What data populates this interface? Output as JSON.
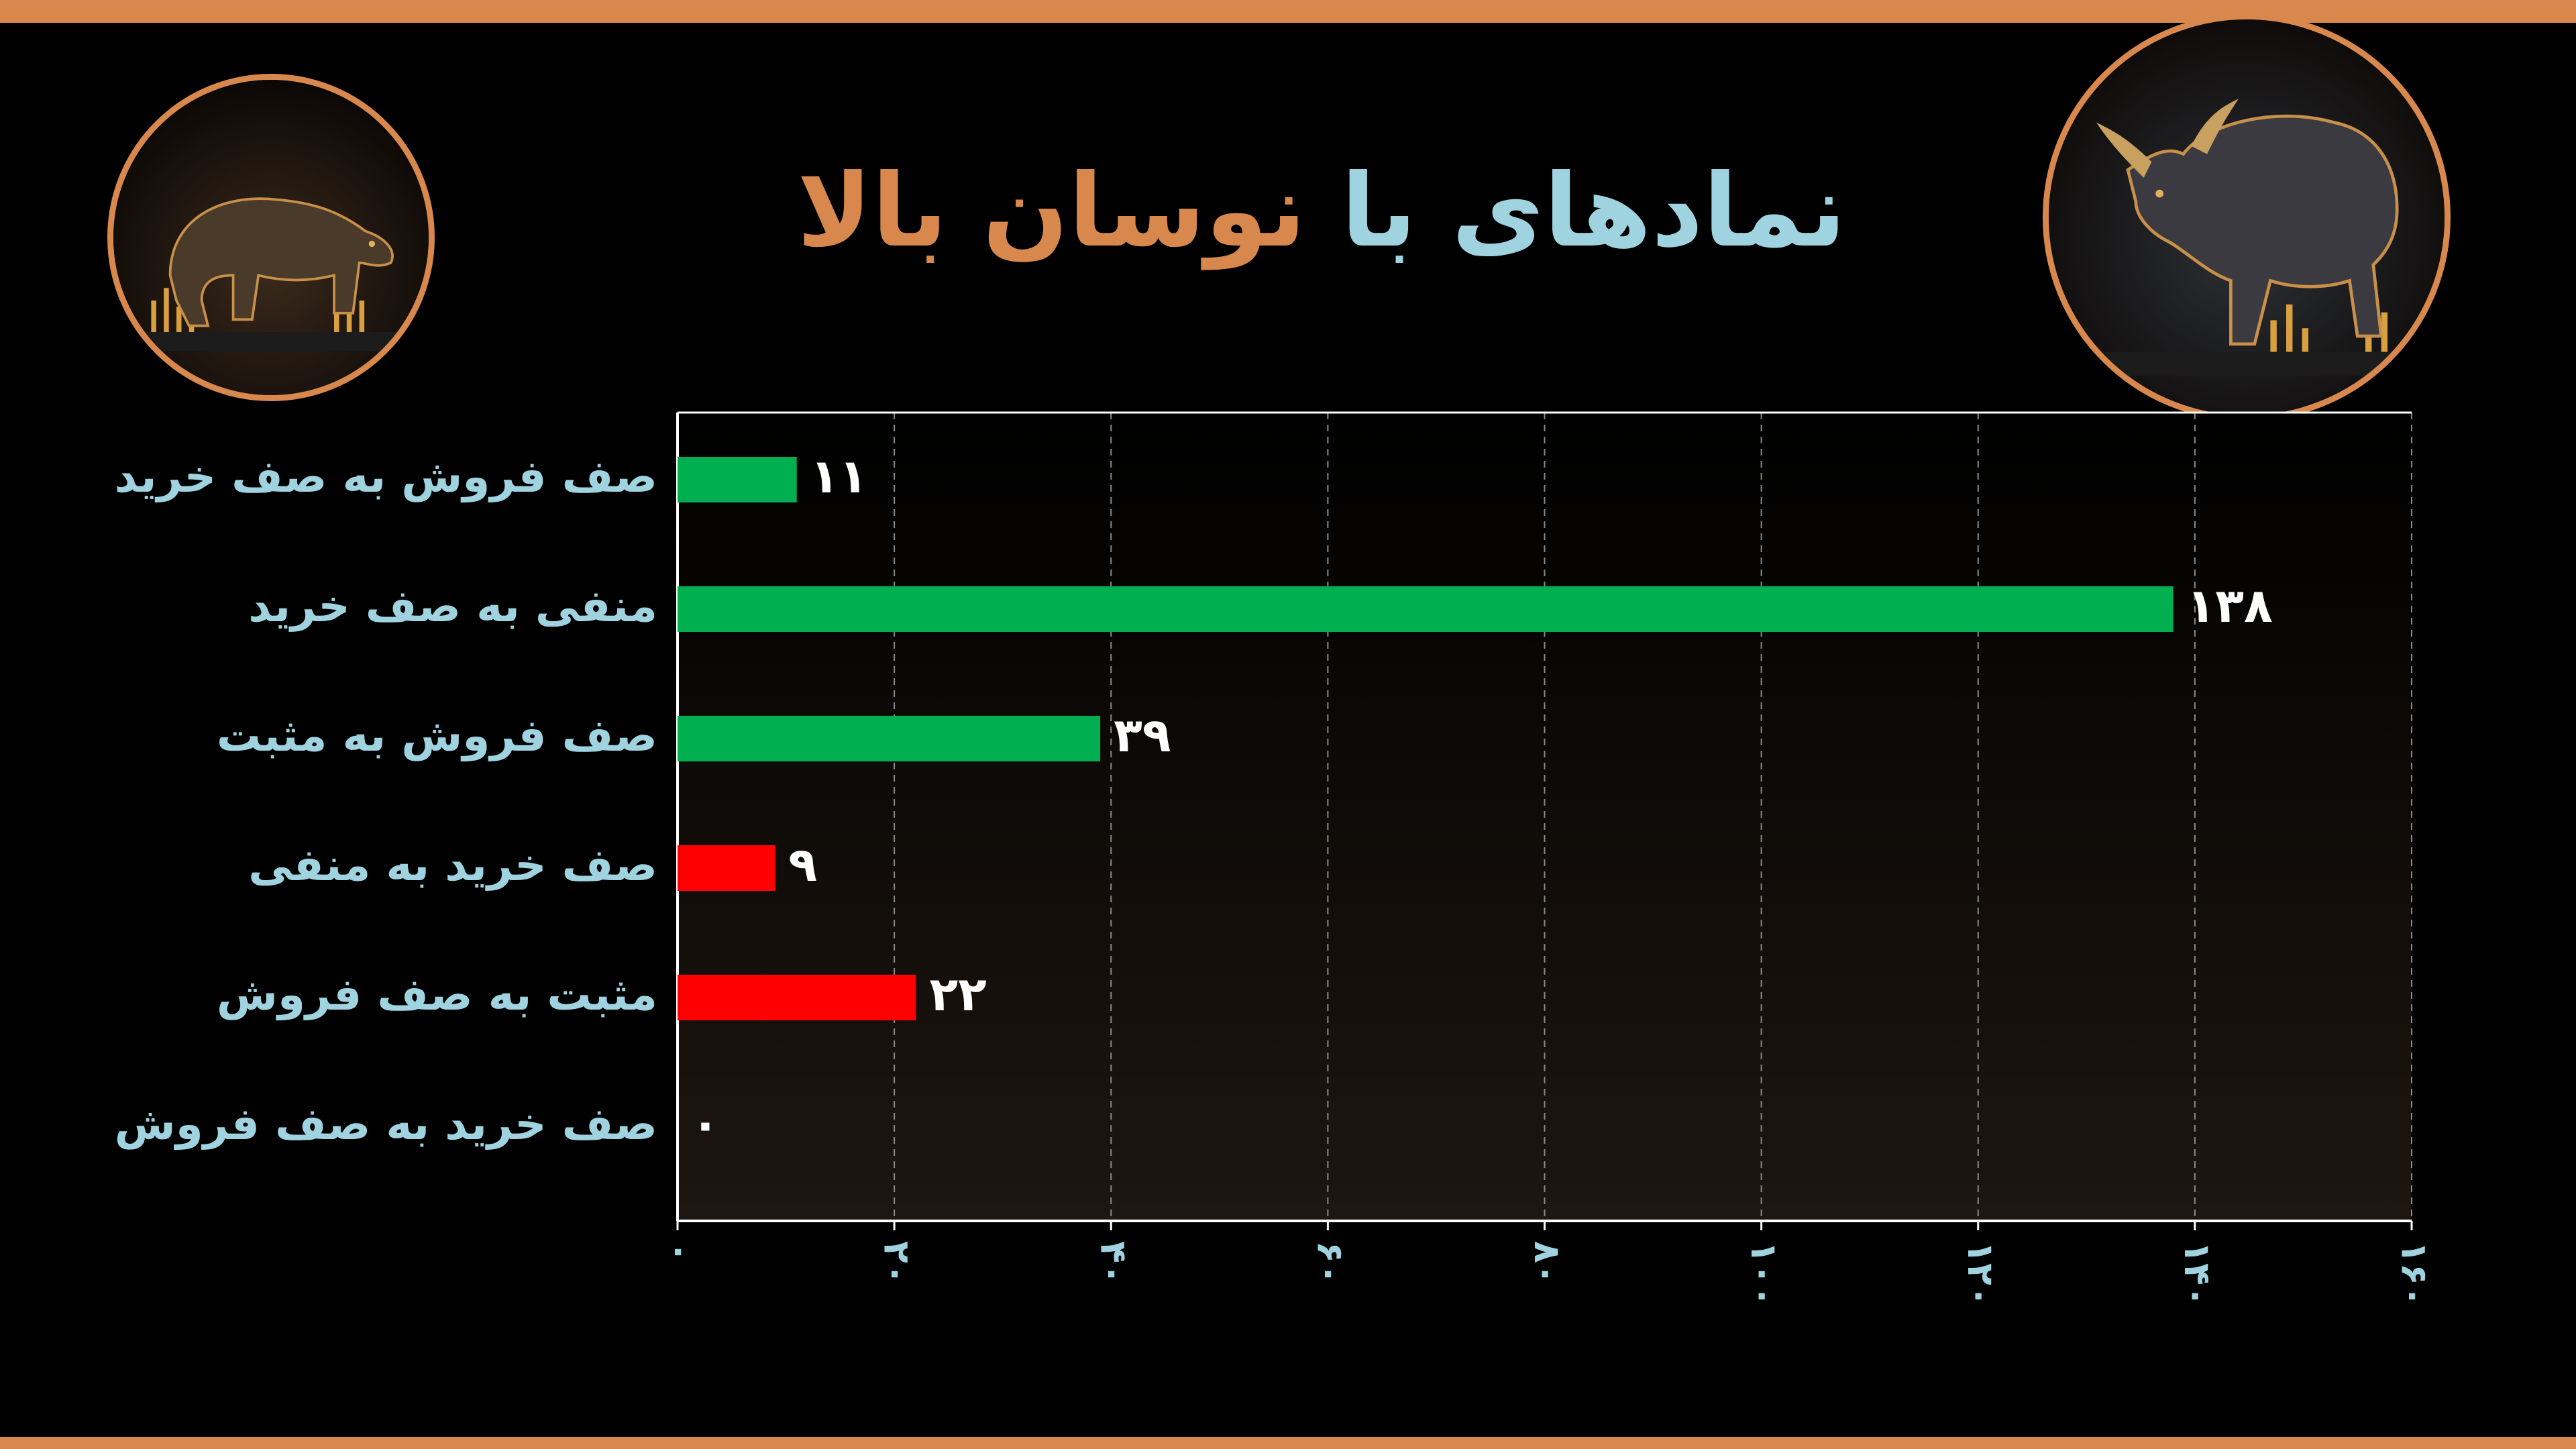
{
  "title": {
    "part1": "نمادهای با",
    "part2": "نوسان بالا"
  },
  "colors": {
    "accent": "#d8884c",
    "title_blue": "#9fd3e0",
    "category_label": "#9fd3e0",
    "green": "#00b050",
    "red": "#ff0000",
    "value_label": "#ffffff",
    "grid": "#8a8a8a",
    "background": "#000000"
  },
  "icons": {
    "left": "bear-icon",
    "right": "bull-icon"
  },
  "chart_data": {
    "type": "bar",
    "orientation": "horizontal",
    "categories": [
      "صف فروش به صف خرید",
      "منفی به صف خرید",
      "صف فروش به مثبت",
      "صف خرید به منفی",
      "مثبت به صف فروش",
      "صف خرید به صف فروش"
    ],
    "values": [
      11,
      138,
      39,
      9,
      22,
      0
    ],
    "value_labels": [
      "۱۱",
      "۱۳۸",
      "۳۹",
      "۹",
      "۲۲",
      "۰"
    ],
    "bar_colors": [
      "#00b050",
      "#00b050",
      "#00b050",
      "#ff0000",
      "#ff0000",
      "#00b050"
    ],
    "xlim": [
      0,
      160
    ],
    "x_ticks": [
      0,
      20,
      40,
      60,
      80,
      100,
      120,
      140,
      160
    ],
    "x_tick_labels": [
      "۰",
      "۲۰",
      "۴۰",
      "۶۰",
      "۸۰",
      "۱۰۰",
      "۱۲۰",
      "۱۴۰",
      "۱۶۰"
    ],
    "grid": "vertical-dashed",
    "legend": "none",
    "title": "",
    "xlabel": "",
    "ylabel": ""
  }
}
